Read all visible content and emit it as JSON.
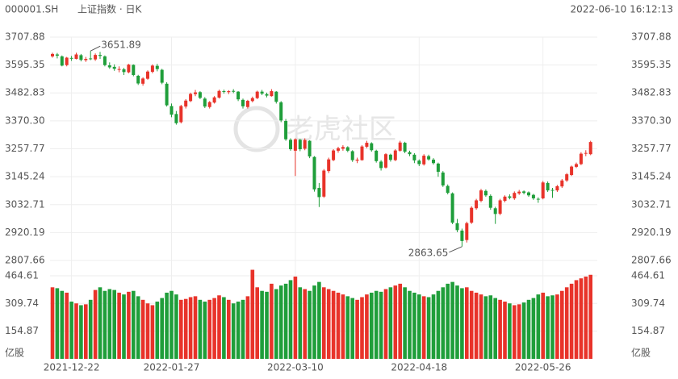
{
  "header": {
    "symbol": "000001.SH",
    "name": "上证指数 · 日K",
    "timestamp": "2022-06-10 16:12:13"
  },
  "watermark": "老虎社区",
  "chart_data": {
    "type": "candlestick",
    "up_color": "#e8332a",
    "down_color": "#1f9e3a",
    "ylim": [
      2807.66,
      3707.88
    ],
    "yticks": [
      3707.88,
      3595.35,
      3482.83,
      {
        "value": 3370.3,
        "label": "3370.30"
      },
      3257.77,
      3145.24,
      3032.71,
      2920.19,
      2807.66
    ],
    "volume_ylim": [
      0,
      505
    ],
    "volume_yticks": [
      464.61,
      309.74,
      154.87
    ],
    "volume_unit": "亿股",
    "grid": true,
    "categories": [
      null,
      null,
      null,
      null,
      "2021-12-22",
      null,
      null,
      null,
      null,
      null,
      null,
      null,
      null,
      null,
      null,
      null,
      null,
      null,
      null,
      null,
      null,
      null,
      null,
      null,
      null,
      "2022-01-27",
      null,
      null,
      null,
      null,
      null,
      null,
      null,
      null,
      null,
      null,
      null,
      null,
      null,
      null,
      null,
      null,
      null,
      null,
      null,
      null,
      null,
      null,
      null,
      null,
      null,
      "2022-03-10",
      null,
      null,
      null,
      null,
      null,
      null,
      null,
      null,
      null,
      null,
      null,
      null,
      null,
      null,
      null,
      null,
      null,
      null,
      null,
      null,
      null,
      null,
      null,
      null,
      null,
      "2022-04-18",
      null,
      null,
      null,
      null,
      null,
      null,
      null,
      null,
      null,
      null,
      null,
      null,
      null,
      null,
      null,
      null,
      null,
      null,
      null,
      null,
      null,
      null,
      null,
      null,
      null,
      "2022-05-26",
      null,
      null,
      null,
      null,
      null,
      null,
      null,
      null,
      null,
      null
    ],
    "open": [
      3630,
      3638,
      3630,
      3595,
      3624,
      3620,
      3635,
      3615,
      3622,
      3618,
      3636,
      3630,
      3594,
      3588,
      3578,
      3578,
      3566,
      3596,
      3552,
      3520,
      3540,
      3568,
      3592,
      3576,
      3520,
      3430,
      3398,
      3365,
      3428,
      3450,
      3478,
      3486,
      3460,
      3426,
      3444,
      3464,
      3490,
      3486,
      3491,
      3488,
      3455,
      3426,
      3450,
      3462,
      3488,
      3478,
      3470,
      3488,
      3445,
      3370,
      3294,
      3250,
      3294,
      3258,
      3290,
      3225,
      3100,
      3065,
      3168,
      3212,
      3250,
      3258,
      3264,
      3248,
      3210,
      3212,
      3266,
      3280,
      3250,
      3206,
      3182,
      3234,
      3212,
      3250,
      3282,
      3244,
      3234,
      3210,
      3195,
      3228,
      3214,
      3198,
      3162,
      3108,
      3078,
      2958,
      2928,
      2890,
      2960,
      3018,
      3048,
      3088,
      3068,
      3018,
      2996,
      3048,
      3066,
      3058,
      3078,
      3086,
      3082,
      3072,
      3056,
      3058,
      3120,
      3092,
      3090,
      3106,
      3130,
      3152,
      3185,
      3196,
      3240,
      3236
    ],
    "high": [
      3645,
      3644,
      3634,
      3628,
      3632,
      3645,
      3640,
      3628,
      3651.89,
      3642,
      3648,
      3634,
      3606,
      3598,
      3590,
      3584,
      3600,
      3598,
      3556,
      3546,
      3574,
      3598,
      3600,
      3580,
      3526,
      3440,
      3410,
      3435,
      3458,
      3484,
      3495,
      3490,
      3466,
      3450,
      3470,
      3496,
      3496,
      3494,
      3498,
      3490,
      3460,
      3455,
      3468,
      3492,
      3495,
      3484,
      3498,
      3490,
      3450,
      3378,
      3300,
      3300,
      3298,
      3300,
      3292,
      3228,
      3120,
      3176,
      3222,
      3256,
      3266,
      3272,
      3268,
      3252,
      3222,
      3272,
      3290,
      3284,
      3254,
      3212,
      3240,
      3238,
      3256,
      3290,
      3286,
      3250,
      3240,
      3215,
      3236,
      3234,
      3220,
      3202,
      3168,
      3114,
      3082,
      2975,
      2936,
      2964,
      3026,
      3056,
      3096,
      3094,
      3074,
      3024,
      3056,
      3070,
      3074,
      3086,
      3092,
      3090,
      3086,
      3076,
      3062,
      3128,
      3126,
      3100,
      3112,
      3136,
      3160,
      3190,
      3202,
      3244,
      3252,
      3290
    ],
    "low": [
      3625,
      3622,
      3590,
      3590,
      3612,
      3618,
      3610,
      3608,
      3615,
      3612,
      3620,
      3590,
      3580,
      3572,
      3566,
      3555,
      3562,
      3550,
      3515,
      3512,
      3536,
      3562,
      3570,
      3518,
      3428,
      3385,
      3355,
      3360,
      3420,
      3446,
      3470,
      3458,
      3422,
      3420,
      3440,
      3460,
      3480,
      3478,
      3482,
      3450,
      3420,
      3420,
      3445,
      3458,
      3474,
      3465,
      3468,
      3440,
      3365,
      3290,
      3250,
      3148,
      3248,
      3252,
      3220,
      3085,
      3023,
      3060,
      3160,
      3208,
      3242,
      3250,
      3244,
      3205,
      3200,
      3210,
      3260,
      3246,
      3202,
      3170,
      3178,
      3206,
      3208,
      3246,
      3240,
      3228,
      3200,
      3188,
      3190,
      3210,
      3194,
      3145,
      3104,
      3074,
      2954,
      2922,
      2863.65,
      2880,
      2955,
      3012,
      3042,
      3064,
      3012,
      2955,
      2990,
      3042,
      3054,
      3052,
      3072,
      3074,
      3064,
      3052,
      3040,
      3054,
      3084,
      3060,
      3084,
      3100,
      3124,
      3148,
      3180,
      3192,
      3228,
      3232
    ],
    "close": [
      3640,
      3633,
      3593,
      3625,
      3622,
      3638,
      3616,
      3620,
      3619,
      3636,
      3632,
      3595,
      3586,
      3580,
      3579,
      3567,
      3597,
      3555,
      3521,
      3541,
      3569,
      3593,
      3579,
      3524,
      3433,
      3395,
      3361,
      3430,
      3452,
      3479,
      3485,
      3463,
      3428,
      3446,
      3465,
      3491,
      3488,
      3490,
      3489,
      3457,
      3429,
      3451,
      3462,
      3488,
      3480,
      3472,
      3490,
      3447,
      3372,
      3296,
      3256,
      3296,
      3256,
      3293,
      3227,
      3094,
      3063,
      3170,
      3215,
      3251,
      3260,
      3265,
      3250,
      3212,
      3214,
      3267,
      3282,
      3252,
      3208,
      3180,
      3236,
      3213,
      3251,
      3283,
      3246,
      3236,
      3211,
      3196,
      3230,
      3215,
      3200,
      3165,
      3110,
      3080,
      2960,
      2930,
      2886,
      2958,
      3020,
      3050,
      3090,
      3070,
      3020,
      2995,
      3050,
      3065,
      3060,
      3080,
      3085,
      3080,
      3070,
      3058,
      3055,
      3122,
      3090,
      3089,
      3107,
      3130,
      3155,
      3186,
      3196,
      3238,
      3241,
      3285
    ],
    "volume": [
      400,
      395,
      380,
      370,
      320,
      310,
      300,
      305,
      330,
      385,
      400,
      380,
      390,
      385,
      370,
      360,
      375,
      380,
      350,
      330,
      310,
      300,
      320,
      340,
      370,
      380,
      360,
      330,
      335,
      345,
      350,
      330,
      320,
      330,
      340,
      355,
      345,
      330,
      310,
      320,
      330,
      350,
      498,
      400,
      380,
      375,
      420,
      390,
      410,
      420,
      440,
      460,
      400,
      390,
      380,
      410,
      430,
      400,
      390,
      380,
      370,
      360,
      350,
      340,
      330,
      345,
      360,
      370,
      380,
      375,
      390,
      400,
      410,
      420,
      400,
      380,
      370,
      360,
      350,
      345,
      360,
      380,
      400,
      420,
      430,
      410,
      395,
      400,
      380,
      370,
      360,
      350,
      355,
      340,
      330,
      320,
      310,
      300,
      305,
      315,
      330,
      340,
      360,
      370,
      350,
      355,
      360,
      380,
      400,
      420,
      440,
      450,
      460,
      470
    ],
    "high_label_index": 8,
    "low_label_index": 86
  }
}
